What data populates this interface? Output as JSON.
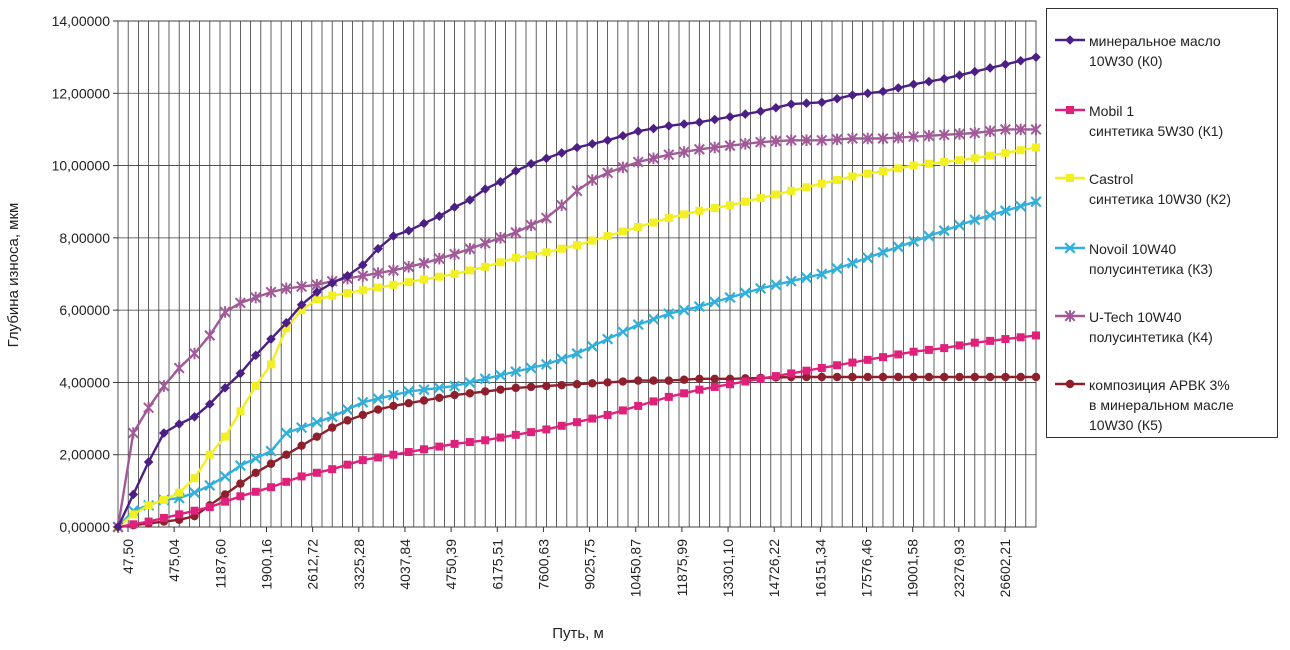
{
  "chart_data": {
    "type": "line",
    "xlabel": "Путь, м",
    "ylabel": "Глубина износа, мкм",
    "ylim": [
      0,
      14
    ],
    "y_ticks": [
      "0,00000",
      "2,00000",
      "4,00000",
      "6,00000",
      "8,00000",
      "10,00000",
      "12,00000",
      "14,00000"
    ],
    "x_tick_labels": [
      "47,50",
      "475,04",
      "1187,60",
      "1900,16",
      "2612,72",
      "3325,28",
      "4037,84",
      "4750,39",
      "6175,51",
      "7600,63",
      "9025,75",
      "10450,87",
      "11875,99",
      "13301,10",
      "14726,22",
      "16151,34",
      "17576,46",
      "19001,58",
      "23276,93",
      "26602,21"
    ],
    "grid": "vertical and horizontal gridlines",
    "legend_position": "right",
    "point_count": 61,
    "series": [
      {
        "name": "минеральное масло 10W30 (К0)",
        "color": "#4b1f86",
        "marker": "diamond",
        "anchors": [
          [
            0,
            0
          ],
          [
            1,
            0.9
          ],
          [
            2,
            1.8
          ],
          [
            3,
            2.6
          ],
          [
            4,
            2.85
          ],
          [
            5,
            3.05
          ],
          [
            6,
            3.4
          ],
          [
            7,
            3.85
          ],
          [
            8,
            4.25
          ],
          [
            9,
            4.75
          ],
          [
            10,
            5.2
          ],
          [
            11,
            5.65
          ],
          [
            12,
            6.15
          ],
          [
            13,
            6.5
          ],
          [
            14,
            6.75
          ],
          [
            15,
            6.95
          ],
          [
            16,
            7.25
          ],
          [
            17,
            7.7
          ],
          [
            18,
            8.05
          ],
          [
            19,
            8.2
          ],
          [
            20,
            8.4
          ],
          [
            21,
            8.6
          ],
          [
            22,
            8.85
          ],
          [
            23,
            9.05
          ],
          [
            24,
            9.35
          ],
          [
            25,
            9.55
          ],
          [
            26,
            9.85
          ],
          [
            27,
            10.05
          ],
          [
            28,
            10.2
          ],
          [
            29,
            10.35
          ],
          [
            30,
            10.5
          ],
          [
            32,
            10.7
          ],
          [
            34,
            10.95
          ],
          [
            36,
            11.1
          ],
          [
            38,
            11.2
          ],
          [
            40,
            11.35
          ],
          [
            42,
            11.5
          ],
          [
            44,
            11.7
          ],
          [
            46,
            11.75
          ],
          [
            48,
            11.95
          ],
          [
            50,
            12.05
          ],
          [
            52,
            12.25
          ],
          [
            54,
            12.4
          ],
          [
            56,
            12.6
          ],
          [
            58,
            12.8
          ],
          [
            60,
            13.0
          ]
        ]
      },
      {
        "name": "Mobil 1 синтетика 5W30 (К1)",
        "color": "#e0217c",
        "marker": "square",
        "anchors": [
          [
            0,
            0
          ],
          [
            2,
            0.15
          ],
          [
            4,
            0.35
          ],
          [
            6,
            0.55
          ],
          [
            8,
            0.85
          ],
          [
            10,
            1.1
          ],
          [
            12,
            1.4
          ],
          [
            14,
            1.6
          ],
          [
            16,
            1.85
          ],
          [
            18,
            2.0
          ],
          [
            20,
            2.15
          ],
          [
            22,
            2.3
          ],
          [
            24,
            2.4
          ],
          [
            26,
            2.55
          ],
          [
            28,
            2.7
          ],
          [
            30,
            2.9
          ],
          [
            32,
            3.1
          ],
          [
            34,
            3.35
          ],
          [
            36,
            3.6
          ],
          [
            38,
            3.8
          ],
          [
            40,
            3.95
          ],
          [
            42,
            4.1
          ],
          [
            44,
            4.25
          ],
          [
            46,
            4.4
          ],
          [
            48,
            4.55
          ],
          [
            50,
            4.7
          ],
          [
            52,
            4.85
          ],
          [
            54,
            4.95
          ],
          [
            56,
            5.1
          ],
          [
            58,
            5.2
          ],
          [
            60,
            5.3
          ]
        ]
      },
      {
        "name": "Castrol синтетика 10W30 (К2)",
        "color": "#f2ef22",
        "marker": "square",
        "anchors": [
          [
            0,
            0
          ],
          [
            1,
            0.35
          ],
          [
            2,
            0.6
          ],
          [
            3,
            0.75
          ],
          [
            4,
            0.95
          ],
          [
            5,
            1.35
          ],
          [
            6,
            2.0
          ],
          [
            7,
            2.5
          ],
          [
            8,
            3.2
          ],
          [
            9,
            3.9
          ],
          [
            10,
            4.5
          ],
          [
            11,
            5.5
          ],
          [
            12,
            6.0
          ],
          [
            13,
            6.3
          ],
          [
            14,
            6.4
          ],
          [
            16,
            6.55
          ],
          [
            18,
            6.7
          ],
          [
            20,
            6.85
          ],
          [
            22,
            7.0
          ],
          [
            24,
            7.2
          ],
          [
            26,
            7.45
          ],
          [
            28,
            7.6
          ],
          [
            30,
            7.8
          ],
          [
            32,
            8.05
          ],
          [
            34,
            8.3
          ],
          [
            36,
            8.55
          ],
          [
            38,
            8.75
          ],
          [
            40,
            8.9
          ],
          [
            42,
            9.1
          ],
          [
            44,
            9.3
          ],
          [
            46,
            9.5
          ],
          [
            48,
            9.7
          ],
          [
            50,
            9.85
          ],
          [
            52,
            10.0
          ],
          [
            54,
            10.1
          ],
          [
            56,
            10.2
          ],
          [
            58,
            10.35
          ],
          [
            60,
            10.5
          ]
        ]
      },
      {
        "name": "Novoil 10W40 полусинтетика (К3)",
        "color": "#30b0dc",
        "marker": "x",
        "anchors": [
          [
            0,
            0
          ],
          [
            1,
            0.45
          ],
          [
            2,
            0.6
          ],
          [
            3,
            0.75
          ],
          [
            4,
            0.8
          ],
          [
            5,
            0.95
          ],
          [
            6,
            1.15
          ],
          [
            7,
            1.4
          ],
          [
            8,
            1.7
          ],
          [
            9,
            1.9
          ],
          [
            10,
            2.1
          ],
          [
            11,
            2.6
          ],
          [
            12,
            2.75
          ],
          [
            13,
            2.9
          ],
          [
            14,
            3.05
          ],
          [
            15,
            3.25
          ],
          [
            16,
            3.45
          ],
          [
            17,
            3.55
          ],
          [
            18,
            3.65
          ],
          [
            19,
            3.75
          ],
          [
            20,
            3.8
          ],
          [
            22,
            3.9
          ],
          [
            24,
            4.1
          ],
          [
            26,
            4.3
          ],
          [
            28,
            4.5
          ],
          [
            30,
            4.8
          ],
          [
            32,
            5.2
          ],
          [
            34,
            5.6
          ],
          [
            36,
            5.9
          ],
          [
            38,
            6.1
          ],
          [
            40,
            6.35
          ],
          [
            42,
            6.6
          ],
          [
            44,
            6.8
          ],
          [
            46,
            7.0
          ],
          [
            48,
            7.3
          ],
          [
            50,
            7.6
          ],
          [
            52,
            7.9
          ],
          [
            54,
            8.2
          ],
          [
            56,
            8.5
          ],
          [
            58,
            8.75
          ],
          [
            60,
            9.0
          ]
        ]
      },
      {
        "name": "U-Tech 10W40 полусинтетика (К4)",
        "color": "#a05a98",
        "marker": "star",
        "anchors": [
          [
            0,
            0
          ],
          [
            1,
            2.6
          ],
          [
            2,
            3.3
          ],
          [
            3,
            3.9
          ],
          [
            4,
            4.4
          ],
          [
            5,
            4.8
          ],
          [
            6,
            5.3
          ],
          [
            7,
            5.95
          ],
          [
            8,
            6.2
          ],
          [
            9,
            6.35
          ],
          [
            10,
            6.5
          ],
          [
            11,
            6.6
          ],
          [
            12,
            6.65
          ],
          [
            13,
            6.7
          ],
          [
            14,
            6.8
          ],
          [
            16,
            6.95
          ],
          [
            18,
            7.1
          ],
          [
            20,
            7.3
          ],
          [
            22,
            7.55
          ],
          [
            24,
            7.85
          ],
          [
            26,
            8.15
          ],
          [
            28,
            8.55
          ],
          [
            29,
            8.9
          ],
          [
            30,
            9.3
          ],
          [
            31,
            9.6
          ],
          [
            32,
            9.8
          ],
          [
            34,
            10.1
          ],
          [
            36,
            10.3
          ],
          [
            38,
            10.45
          ],
          [
            40,
            10.55
          ],
          [
            42,
            10.65
          ],
          [
            44,
            10.7
          ],
          [
            46,
            10.7
          ],
          [
            48,
            10.75
          ],
          [
            50,
            10.75
          ],
          [
            52,
            10.8
          ],
          [
            54,
            10.85
          ],
          [
            56,
            10.9
          ],
          [
            58,
            11.0
          ],
          [
            60,
            11.0
          ]
        ]
      },
      {
        "name": "композиция АРВК 3% в минеральном масле 10W30 (К5)",
        "color": "#8e1f2c",
        "marker": "circle",
        "anchors": [
          [
            0,
            0
          ],
          [
            2,
            0.1
          ],
          [
            4,
            0.2
          ],
          [
            5,
            0.3
          ],
          [
            6,
            0.6
          ],
          [
            7,
            0.9
          ],
          [
            8,
            1.2
          ],
          [
            9,
            1.5
          ],
          [
            10,
            1.75
          ],
          [
            11,
            2.0
          ],
          [
            12,
            2.25
          ],
          [
            13,
            2.5
          ],
          [
            14,
            2.75
          ],
          [
            15,
            2.95
          ],
          [
            16,
            3.1
          ],
          [
            17,
            3.25
          ],
          [
            18,
            3.35
          ],
          [
            20,
            3.5
          ],
          [
            22,
            3.65
          ],
          [
            24,
            3.75
          ],
          [
            26,
            3.85
          ],
          [
            28,
            3.9
          ],
          [
            30,
            3.95
          ],
          [
            32,
            4.0
          ],
          [
            34,
            4.05
          ],
          [
            36,
            4.05
          ],
          [
            38,
            4.1
          ],
          [
            40,
            4.1
          ],
          [
            44,
            4.15
          ],
          [
            48,
            4.15
          ],
          [
            52,
            4.15
          ],
          [
            56,
            4.15
          ],
          [
            60,
            4.15
          ]
        ]
      }
    ]
  },
  "legend": {
    "entries": [
      {
        "label": "минеральное масло\n10W30 (К0)"
      },
      {
        "label": "Mobil 1\nсинтетика 5W30 (К1)"
      },
      {
        "label": "Castrol\nсинтетика 10W30 (К2)"
      },
      {
        "label": "Novoil 10W40\nполусинтетика (К3)"
      },
      {
        "label": "U-Tech 10W40\nполусинтетика (К4)"
      },
      {
        "label": "композиция АРВК 3%\nв минеральном масле\n10W30 (К5)"
      }
    ]
  }
}
